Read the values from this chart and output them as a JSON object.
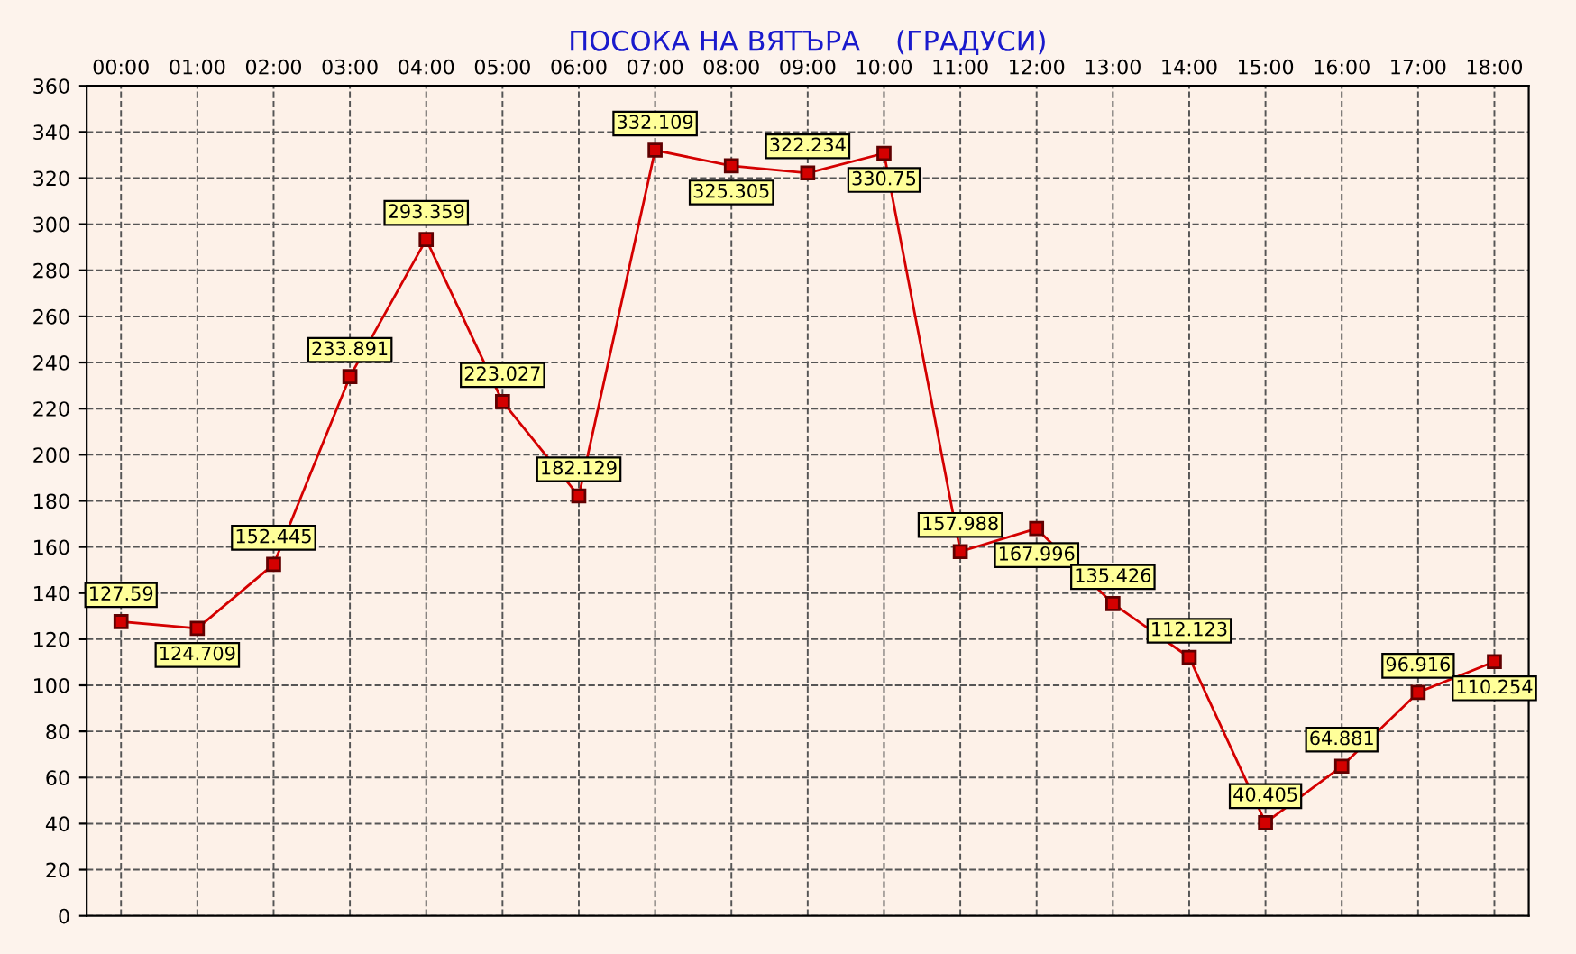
{
  "chart_data": {
    "type": "line",
    "title": "ПОСОКА НА ВЯТЪРА    (ГРАДУСИ)",
    "categories": [
      "00:00",
      "01:00",
      "02:00",
      "03:00",
      "04:00",
      "05:00",
      "06:00",
      "07:00",
      "08:00",
      "09:00",
      "10:00",
      "11:00",
      "12:00",
      "13:00",
      "14:00",
      "15:00",
      "16:00",
      "17:00",
      "18:00"
    ],
    "series": [
      {
        "color": "#d40000",
        "values": [
          127.59,
          124.709,
          152.445,
          233.891,
          293.359,
          223.027,
          182.129,
          332.109,
          325.305,
          322.234,
          330.75,
          157.988,
          167.996,
          135.426,
          112.123,
          40.405,
          64.881,
          96.916,
          110.254
        ]
      }
    ],
    "ylim": [
      0,
      360
    ],
    "yticks": [
      0,
      20,
      40,
      60,
      80,
      100,
      120,
      140,
      160,
      180,
      200,
      220,
      240,
      260,
      280,
      300,
      320,
      340,
      360
    ],
    "grid": true,
    "marker": "square",
    "line_style": "solid",
    "data_labels": true,
    "legend": false
  }
}
